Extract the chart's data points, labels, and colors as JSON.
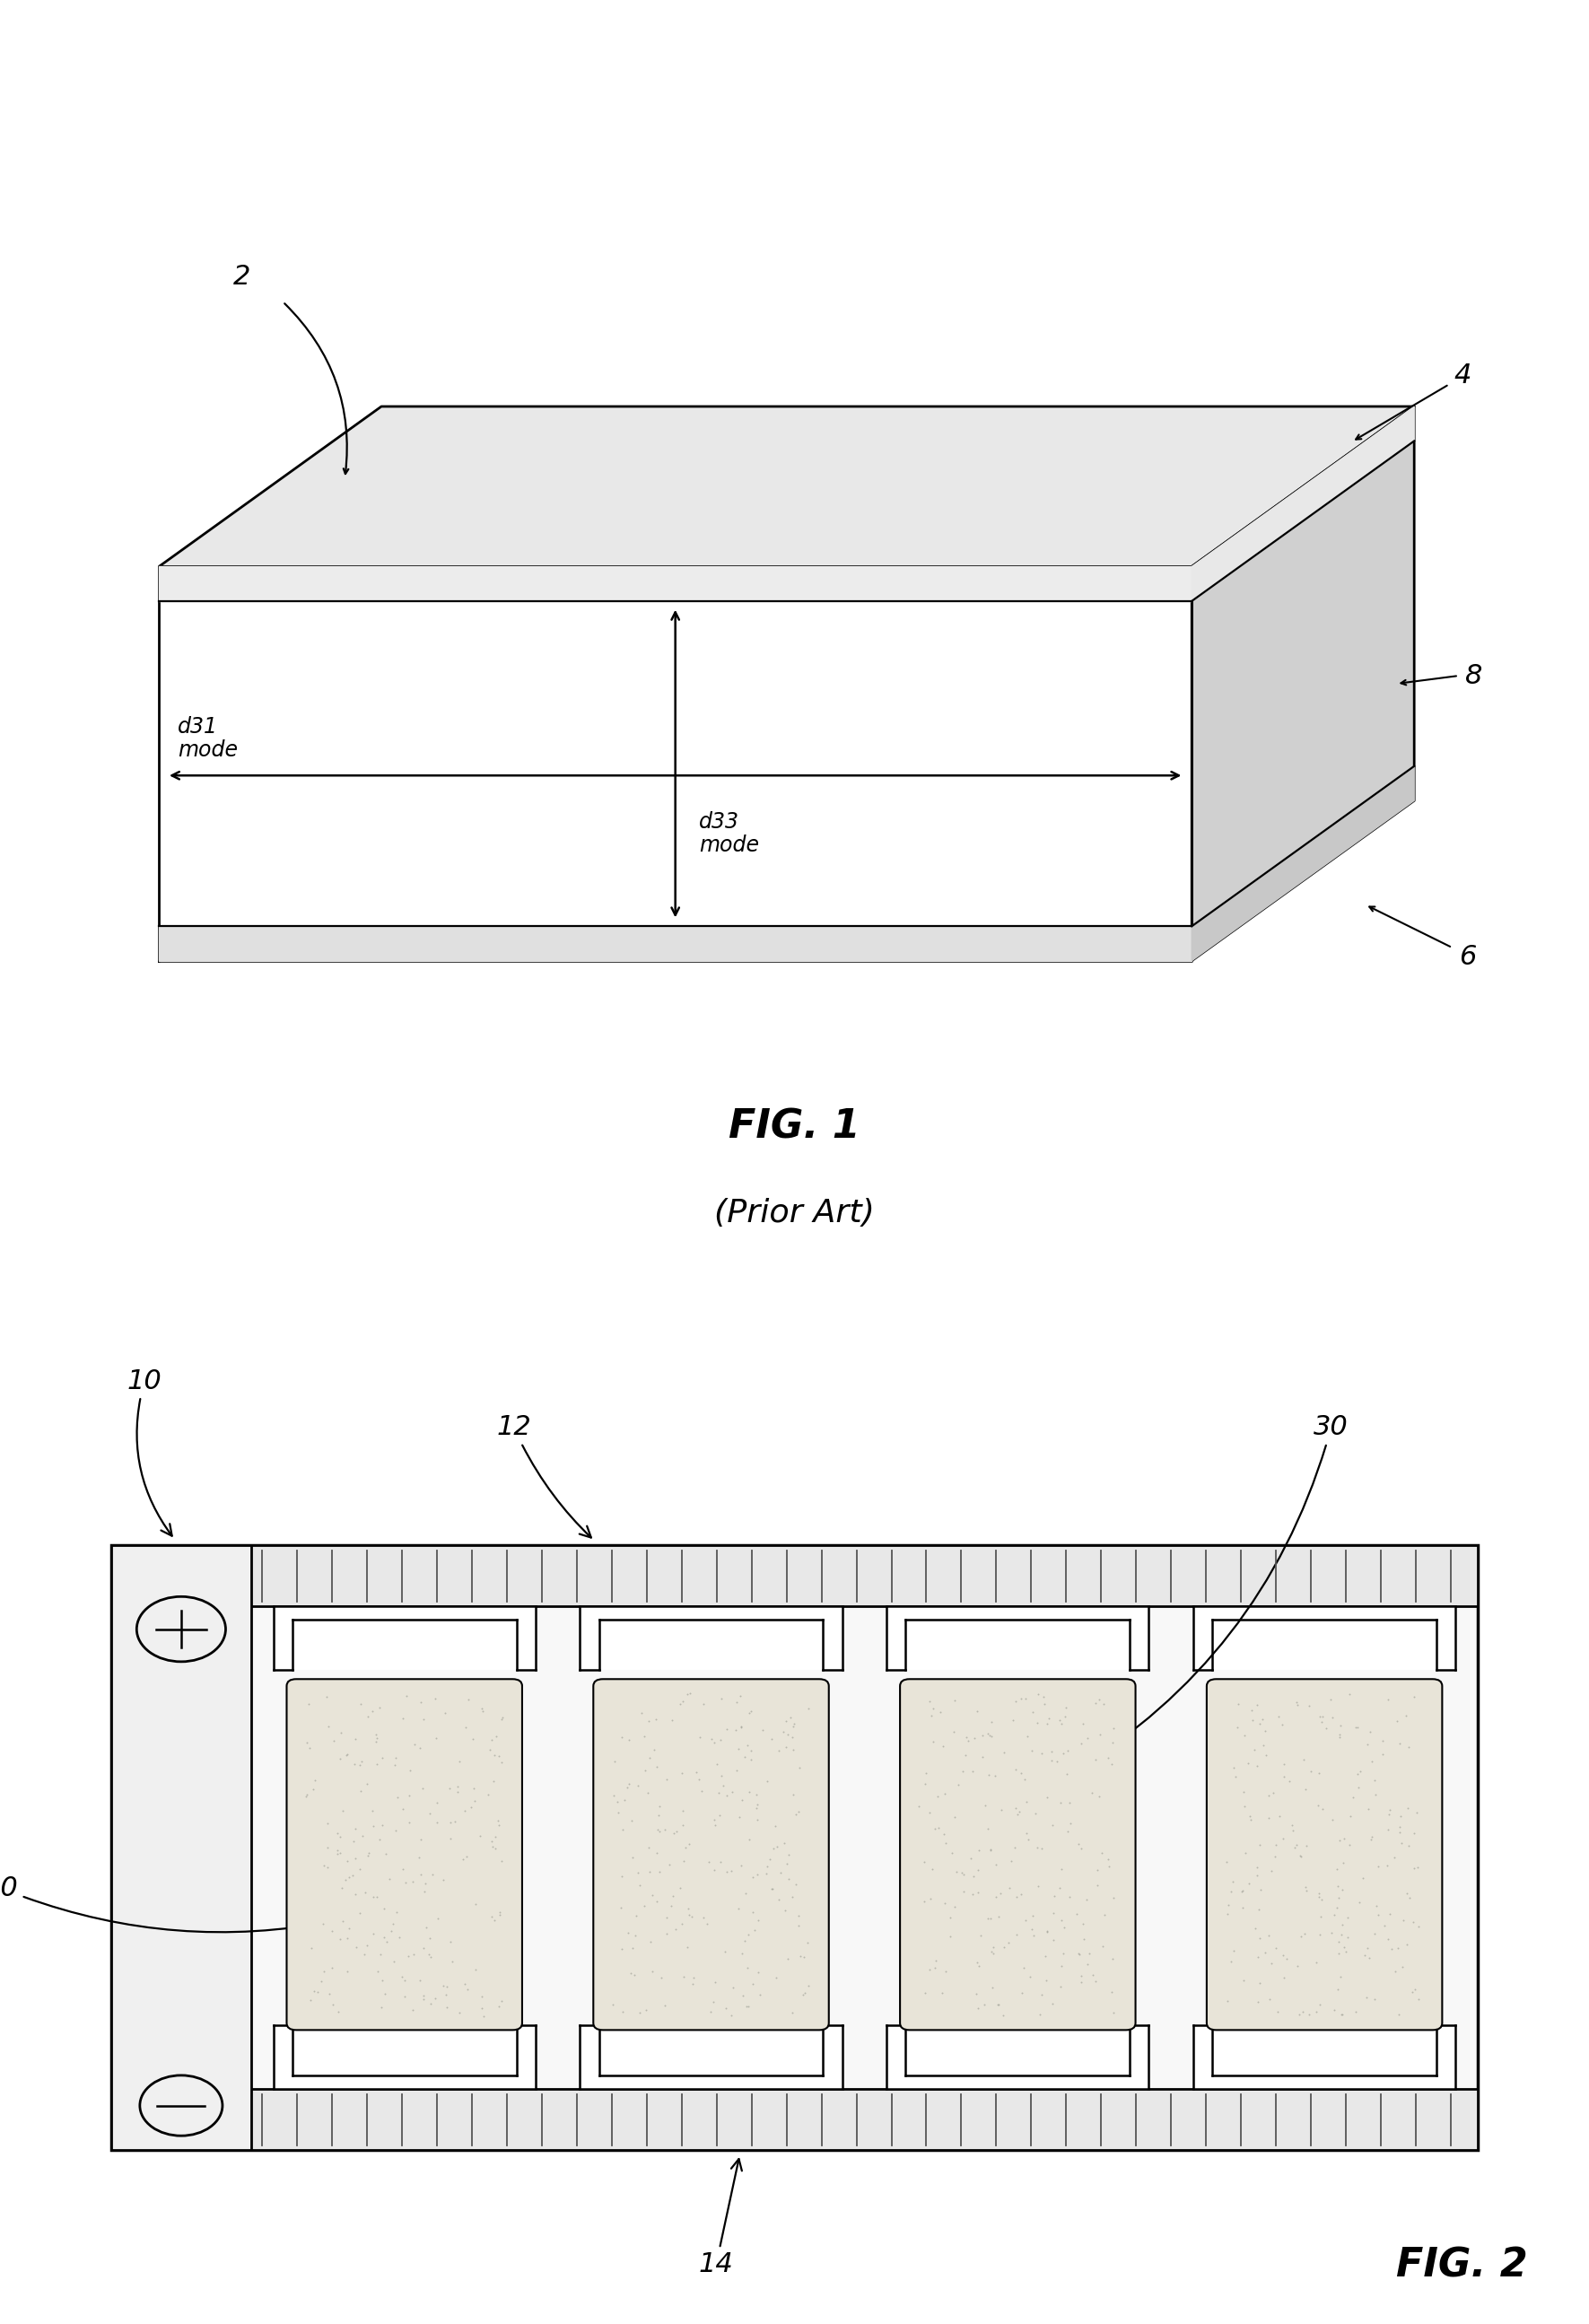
{
  "bg_color": "#ffffff",
  "line_color": "#000000",
  "fig1": {
    "label": "FIG. 1",
    "sublabel": "(Prior Art)",
    "refs": [
      "2",
      "4",
      "6",
      "8"
    ],
    "d31_text": "d31\nmode",
    "d33_text": "d33\nmode",
    "front_face_color": "#ffffff",
    "top_face_color": "#e8e8e8",
    "side_face_color": "#d0d0d0",
    "stripe_color": "#f0f0f0",
    "lw": 2.0
  },
  "fig2": {
    "label": "FIG. 2",
    "refs": [
      "10",
      "12",
      "14",
      "30"
    ],
    "outer_fill": "#f8f8f8",
    "electrode_fill": "#f0f0f0",
    "pzt_fill": "#e8e4d8",
    "hatch_color": "#555555",
    "lw": 2.0
  },
  "font_size_label": 32,
  "font_size_ref": 22,
  "font_size_mode": 17
}
